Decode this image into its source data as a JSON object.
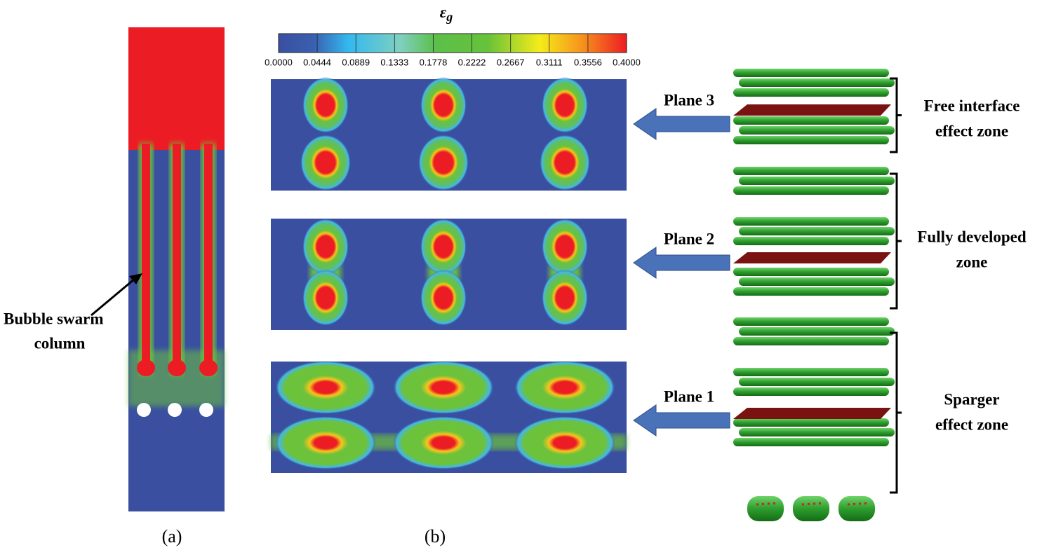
{
  "colorbar": {
    "title": "ε",
    "subscript": "g",
    "range": [
      0,
      0.4
    ],
    "ticks": [
      {
        "value": 0,
        "label": "0.0000"
      },
      {
        "value": 0.0444,
        "label": "0.0444"
      },
      {
        "value": 0.0889,
        "label": "0.0889"
      },
      {
        "value": 0.1333,
        "label": "0.1333"
      },
      {
        "value": 0.1778,
        "label": "0.1778"
      },
      {
        "value": 0.2222,
        "label": "0.2222"
      },
      {
        "value": 0.2667,
        "label": "0.2667"
      },
      {
        "value": 0.3111,
        "label": "0.3111"
      },
      {
        "value": 0.3556,
        "label": "0.3556"
      },
      {
        "value": 0.4,
        "label": "0.4000"
      }
    ]
  },
  "panel_a": {
    "annotation": [
      "Bubble swarm",
      "column"
    ],
    "label": "(a)"
  },
  "panel_b": {
    "label": "(b)",
    "planes": [
      "Plane 3",
      "Plane 2",
      "Plane 1"
    ]
  },
  "zones": [
    [
      "Free interface",
      "effect zone"
    ],
    [
      "Fully developed",
      "zone"
    ],
    [
      "Sparger",
      "effect zone"
    ]
  ]
}
